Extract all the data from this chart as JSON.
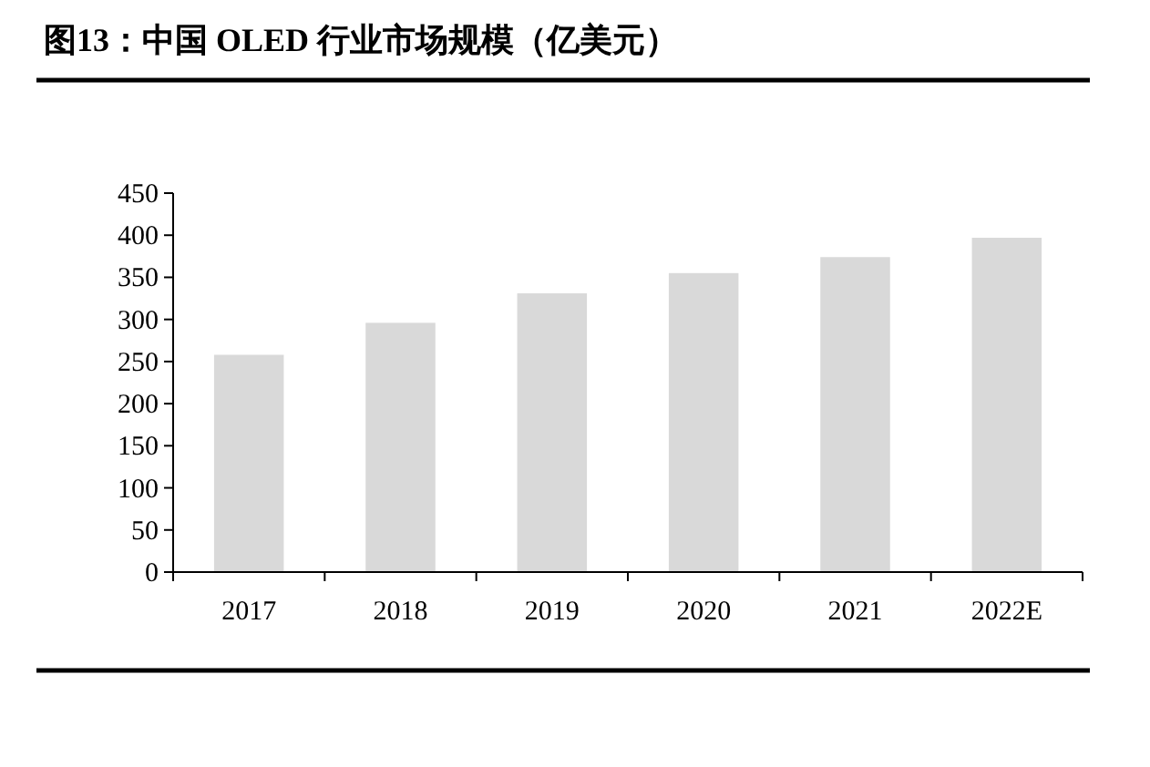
{
  "chart_data": {
    "type": "bar",
    "title": "图13：中国 OLED 行业市场规模（亿美元）",
    "categories": [
      "2017",
      "2018",
      "2019",
      "2020",
      "2021",
      "2022E"
    ],
    "values": [
      258,
      296,
      331,
      355,
      374,
      397
    ],
    "color": "#d9d9d9",
    "ylim": [
      0,
      450
    ],
    "yticks": [
      0,
      50,
      100,
      150,
      200,
      250,
      300,
      350,
      400,
      450
    ],
    "grid": false
  }
}
